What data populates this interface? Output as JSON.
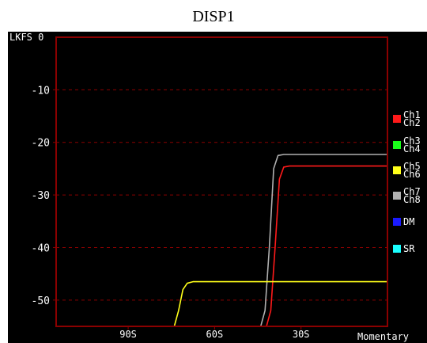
{
  "display": {
    "title": "DISP1",
    "unit_label": "LKFS 0",
    "mode_label": "Momentary",
    "background_color": "#000000",
    "frame_color": "#8b0000"
  },
  "legend": [
    {
      "top": "Ch1",
      "bottom": "Ch2",
      "color": "#ff1a1a"
    },
    {
      "top": "Ch3",
      "bottom": "Ch4",
      "color": "#1aff1a"
    },
    {
      "top": "Ch5",
      "bottom": "Ch6",
      "color": "#ffff1a"
    },
    {
      "top": "Ch7",
      "bottom": "Ch8",
      "color": "#b0b0b0"
    },
    {
      "label": "DM",
      "color": "#1a1aff"
    },
    {
      "label": "SR",
      "color": "#1affff"
    }
  ],
  "chart_data": {
    "type": "line",
    "y_ticks": [
      "-10",
      "-20",
      "-30",
      "-40",
      "-50"
    ],
    "x_ticks": [
      "90S",
      "60S",
      "30S"
    ],
    "ylim": [
      -55,
      0
    ],
    "xlim": [
      115,
      0
    ],
    "grid": true,
    "series": [
      {
        "color": "#b0b0b0",
        "points": [
          [
            44,
            -55
          ],
          [
            42.5,
            -52
          ],
          [
            41,
            -40
          ],
          [
            39.5,
            -25
          ],
          [
            38,
            -22.5
          ],
          [
            36,
            -22.3
          ],
          [
            0,
            -22.3
          ]
        ]
      },
      {
        "color": "#ff1a1a",
        "points": [
          [
            42,
            -55
          ],
          [
            40.5,
            -52
          ],
          [
            39,
            -40
          ],
          [
            37.5,
            -27
          ],
          [
            36,
            -24.7
          ],
          [
            34,
            -24.5
          ],
          [
            0,
            -24.5
          ]
        ]
      },
      {
        "color": "#ffff1a",
        "points": [
          [
            74,
            -55
          ],
          [
            72.5,
            -52
          ],
          [
            71,
            -48
          ],
          [
            69.5,
            -46.8
          ],
          [
            67.5,
            -46.5
          ],
          [
            0,
            -46.5
          ]
        ]
      }
    ]
  }
}
